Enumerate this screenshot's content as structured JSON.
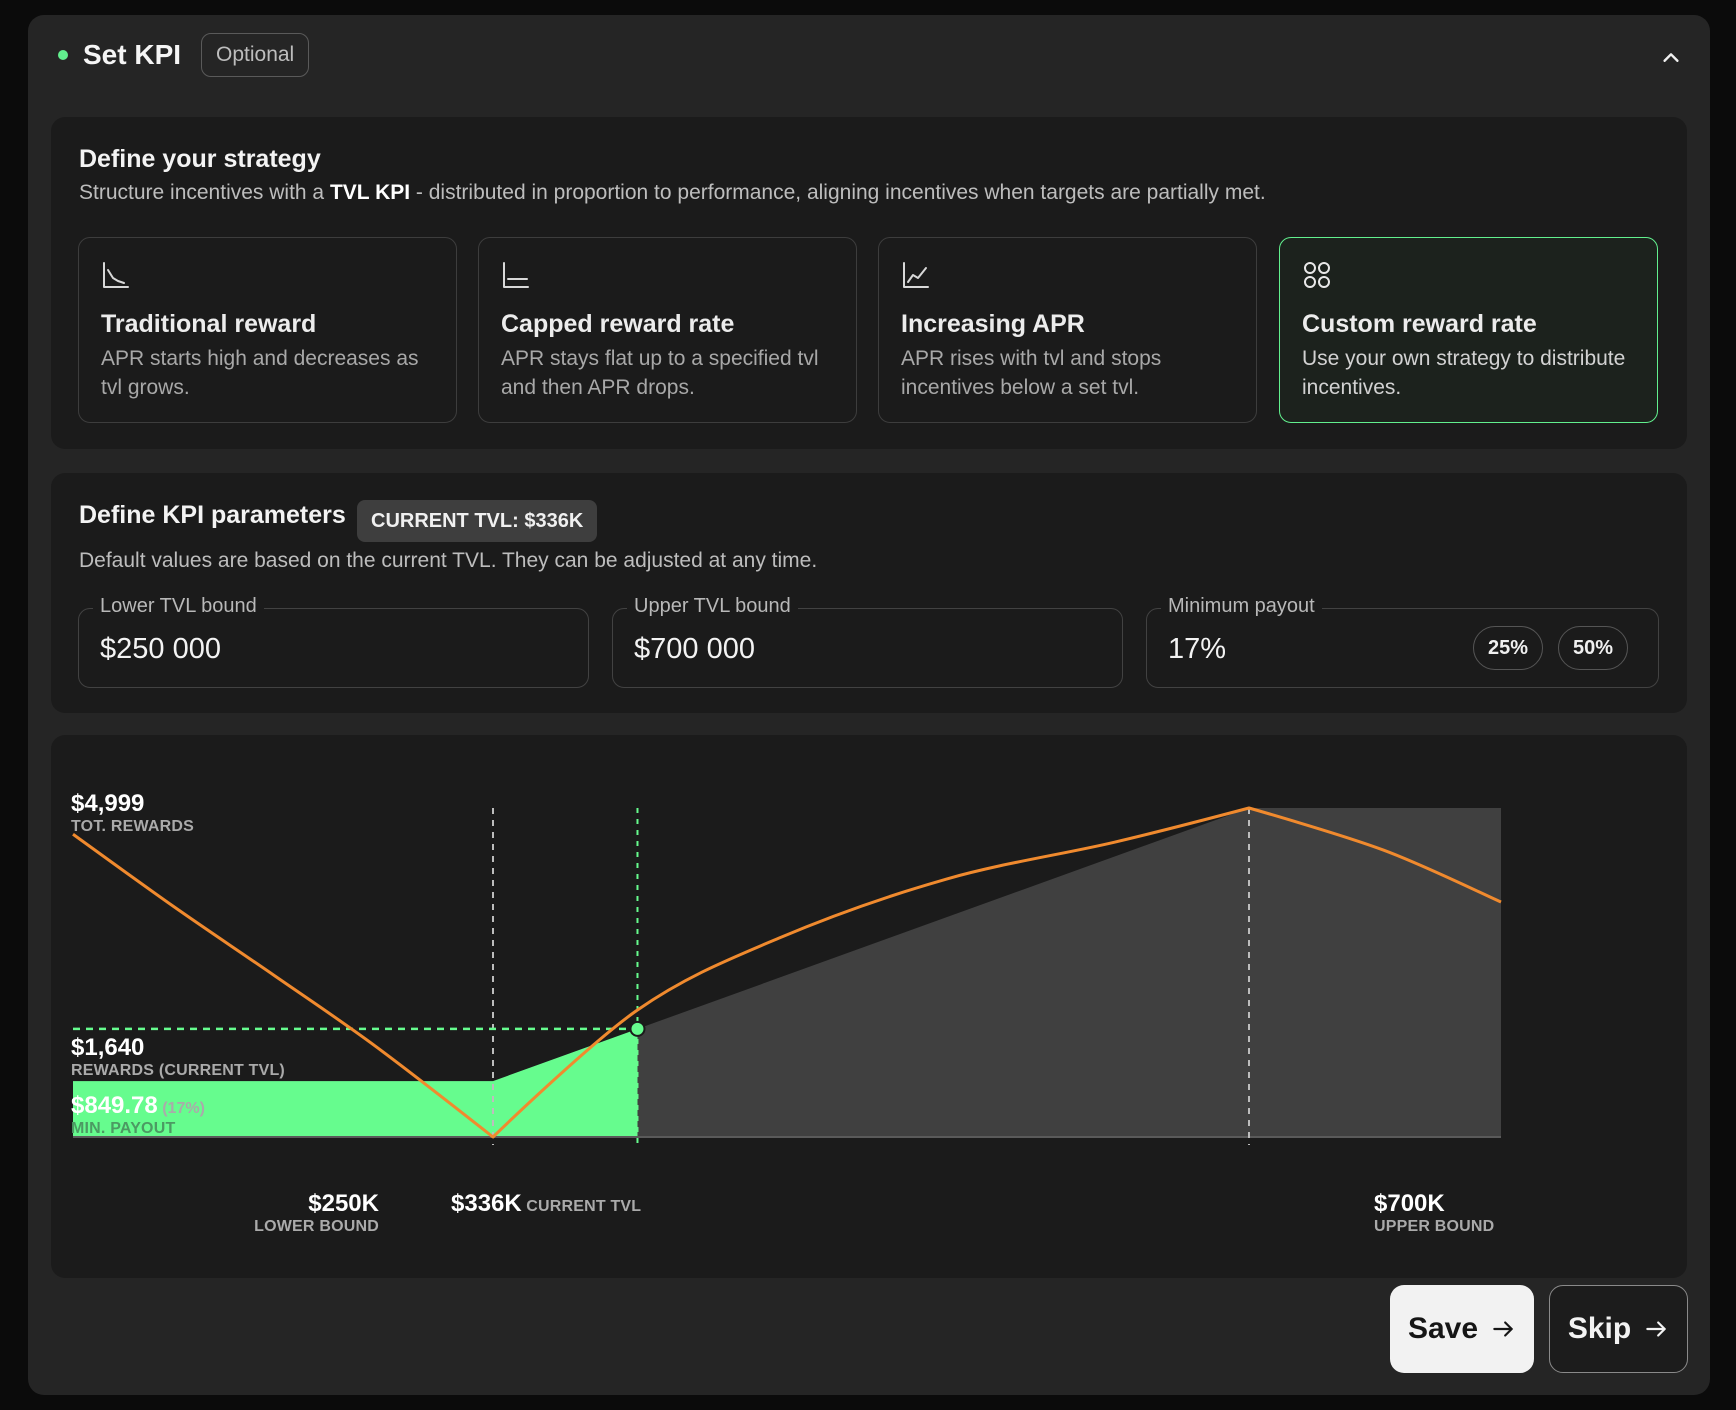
{
  "header": {
    "title": "Set KPI",
    "badge": "Optional"
  },
  "strategy": {
    "title": "Define your strategy",
    "desc_prefix": "Structure incentives with a ",
    "desc_bold": "TVL KPI",
    "desc_suffix": " - distributed in proportion to performance, aligning incentives when targets are partially met.",
    "options": [
      {
        "title": "Traditional reward",
        "desc": "APR starts high and decreases as tvl grows.",
        "icon": "decreasing-chart-icon",
        "selected": false
      },
      {
        "title": "Capped reward rate",
        "desc": "APR stays flat up to a specified tvl and then APR drops.",
        "icon": "capped-chart-icon",
        "selected": false
      },
      {
        "title": "Increasing APR",
        "desc": "APR rises with tvl and stops incentives below a set tvl.",
        "icon": "increasing-chart-icon",
        "selected": false
      },
      {
        "title": "Custom reward rate",
        "desc": "Use your own strategy to distribute incentives.",
        "icon": "grid-icon",
        "selected": true
      }
    ]
  },
  "params": {
    "title": "Define KPI parameters",
    "current_badge": "CURRENT TVL: $336K",
    "desc": "Default values are based on the current TVL. They can be adjusted at any time.",
    "lower": {
      "label": "Lower TVL bound",
      "value": "$250 000"
    },
    "upper": {
      "label": "Upper TVL bound",
      "value": "$700 000"
    },
    "min_payout": {
      "label": "Minimum payout",
      "value": "17%",
      "chips": [
        "25%",
        "50%"
      ]
    }
  },
  "chart_data": {
    "type": "area",
    "x_unit": "TVL ($)",
    "x_min": 0,
    "x_max": 850000,
    "y_max": 4999,
    "labels": {
      "total": {
        "value": "$4,999",
        "caption": "TOT. REWARDS"
      },
      "current_rewards": {
        "value": "$1,640",
        "caption": "REWARDS (CURRENT TVL)"
      },
      "min_payout": {
        "value": "$849.78",
        "pct": "(17%)",
        "caption": "MIN. PAYOUT"
      },
      "lower_bound": {
        "value": "$250K",
        "caption": "LOWER BOUND"
      },
      "current_tvl": {
        "value": "$336K",
        "caption": "CURRENT TVL"
      },
      "upper_bound": {
        "value": "$700K",
        "caption": "UPPER BOUND"
      }
    },
    "lower_bound": 250000,
    "current_tvl": 336000,
    "upper_bound": 700000,
    "total_rewards": 4999,
    "current_rewards": 1640,
    "min_payout": 849.78,
    "reward_area": [
      [
        0,
        849.78
      ],
      [
        250000,
        849.78
      ],
      [
        700000,
        4999
      ],
      [
        850000,
        4999
      ]
    ],
    "apr_curve": [
      [
        0,
        4600
      ],
      [
        60000,
        3500
      ],
      [
        120000,
        2450
      ],
      [
        180000,
        1380
      ],
      [
        250000,
        0
      ],
      [
        336000,
        1930
      ],
      [
        420000,
        3020
      ],
      [
        520000,
        3920
      ],
      [
        620000,
        4480
      ],
      [
        700000,
        4999
      ],
      [
        780000,
        4360
      ],
      [
        850000,
        3570
      ]
    ],
    "colors": {
      "reward_fill": "#66fc8e",
      "projected_fill": "#404040",
      "apr_line": "#f08a2e",
      "current_marker": "#66fc8e"
    }
  },
  "actions": {
    "save": "Save",
    "skip": "Skip"
  }
}
